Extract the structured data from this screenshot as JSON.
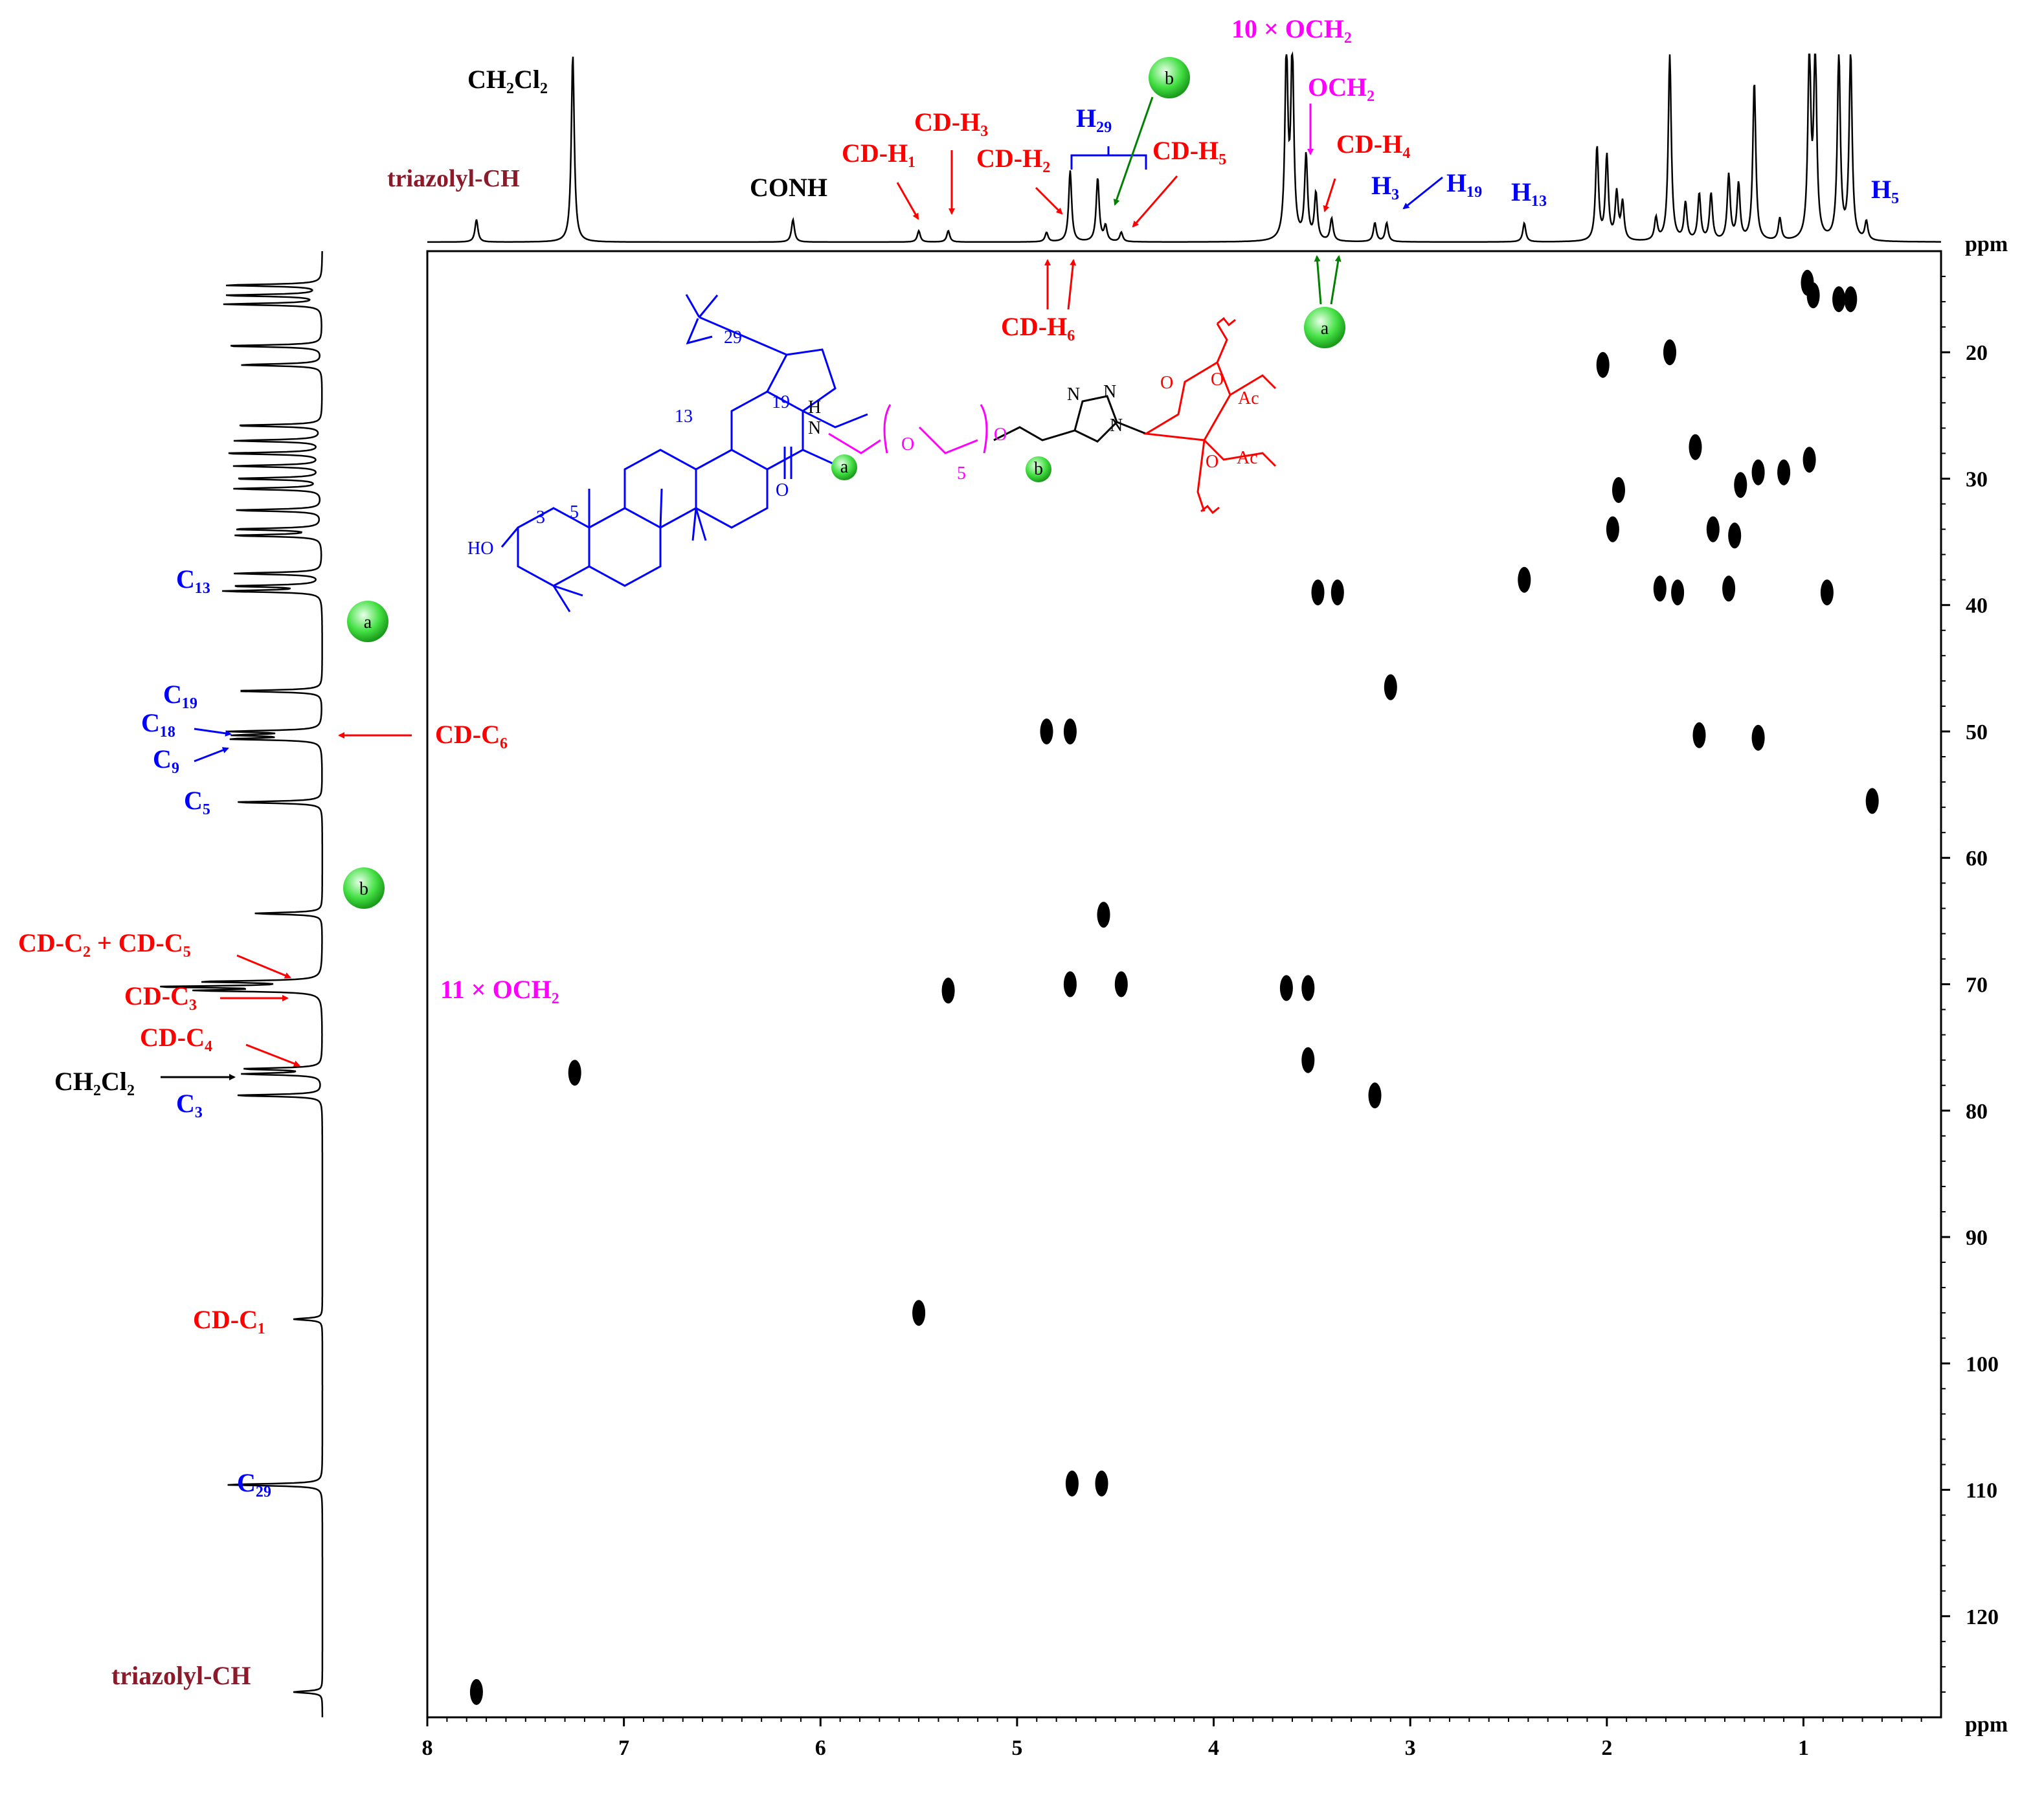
{
  "chart_data": {
    "type": "scatter",
    "subtype": "2D NMR HSQC contour plot",
    "xlabel": "ppm",
    "ylabel": "ppm",
    "x_ticks": [
      "8",
      "7",
      "6",
      "5",
      "4",
      "3",
      "2",
      "1"
    ],
    "y_ticks": [
      "20",
      "30",
      "40",
      "50",
      "60",
      "70",
      "80",
      "90",
      "100",
      "110",
      "120"
    ],
    "xlim": [
      8.0,
      0.3
    ],
    "ylim": [
      12,
      128
    ],
    "cross_peaks": [
      {
        "h": 7.75,
        "c": 126.0
      },
      {
        "h": 7.25,
        "c": 77.0
      },
      {
        "h": 5.5,
        "c": 96.0
      },
      {
        "h": 5.35,
        "c": 70.5
      },
      {
        "h": 4.85,
        "c": 50.0
      },
      {
        "h": 4.73,
        "c": 50.0
      },
      {
        "h": 4.73,
        "c": 70.0
      },
      {
        "h": 4.47,
        "c": 70.0
      },
      {
        "h": 4.56,
        "c": 64.5
      },
      {
        "h": 4.72,
        "c": 109.5
      },
      {
        "h": 4.57,
        "c": 109.5
      },
      {
        "h": 3.63,
        "c": 70.3
      },
      {
        "h": 3.52,
        "c": 70.3
      },
      {
        "h": 3.47,
        "c": 39.0
      },
      {
        "h": 3.37,
        "c": 39.0
      },
      {
        "h": 3.52,
        "c": 76.0
      },
      {
        "h": 3.18,
        "c": 78.8
      },
      {
        "h": 3.1,
        "c": 46.5
      },
      {
        "h": 2.42,
        "c": 38.0
      },
      {
        "h": 2.02,
        "c": 21.0
      },
      {
        "h": 1.68,
        "c": 20.0
      },
      {
        "h": 1.94,
        "c": 30.9
      },
      {
        "h": 1.97,
        "c": 34.0
      },
      {
        "h": 1.55,
        "c": 27.5
      },
      {
        "h": 1.53,
        "c": 50.3
      },
      {
        "h": 1.32,
        "c": 30.5
      },
      {
        "h": 1.23,
        "c": 29.5
      },
      {
        "h": 1.1,
        "c": 29.5
      },
      {
        "h": 0.97,
        "c": 28.5
      },
      {
        "h": 1.46,
        "c": 34.0
      },
      {
        "h": 1.35,
        "c": 34.5
      },
      {
        "h": 1.73,
        "c": 38.7
      },
      {
        "h": 1.64,
        "c": 39.0
      },
      {
        "h": 1.38,
        "c": 38.7
      },
      {
        "h": 0.88,
        "c": 39.0
      },
      {
        "h": 1.23,
        "c": 50.5
      },
      {
        "h": 0.65,
        "c": 55.5
      },
      {
        "h": 0.98,
        "c": 14.5
      },
      {
        "h": 0.95,
        "c": 15.5
      },
      {
        "h": 0.82,
        "c": 15.8
      },
      {
        "h": 0.76,
        "c": 15.8
      }
    ],
    "h1_peaks": [
      {
        "ppm": 7.75,
        "h": 0.12
      },
      {
        "ppm": 7.26,
        "h": 1.0
      },
      {
        "ppm": 6.14,
        "h": 0.12
      },
      {
        "ppm": 5.5,
        "h": 0.06
      },
      {
        "ppm": 5.35,
        "h": 0.06
      },
      {
        "ppm": 4.85,
        "h": 0.05
      },
      {
        "ppm": 4.73,
        "h": 0.38
      },
      {
        "ppm": 4.59,
        "h": 0.34
      },
      {
        "ppm": 4.55,
        "h": 0.08
      },
      {
        "ppm": 4.47,
        "h": 0.05
      },
      {
        "ppm": 3.63,
        "h": 1.0
      },
      {
        "ppm": 3.6,
        "h": 1.0
      },
      {
        "ppm": 3.53,
        "h": 0.45
      },
      {
        "ppm": 3.48,
        "h": 0.25
      },
      {
        "ppm": 3.4,
        "h": 0.12
      },
      {
        "ppm": 3.18,
        "h": 0.1
      },
      {
        "ppm": 3.12,
        "h": 0.1
      },
      {
        "ppm": 2.42,
        "h": 0.1
      },
      {
        "ppm": 2.05,
        "h": 0.5
      },
      {
        "ppm": 2.0,
        "h": 0.45
      },
      {
        "ppm": 1.95,
        "h": 0.25
      },
      {
        "ppm": 1.92,
        "h": 0.2
      },
      {
        "ppm": 1.75,
        "h": 0.12
      },
      {
        "ppm": 1.68,
        "h": 1.0
      },
      {
        "ppm": 1.6,
        "h": 0.2
      },
      {
        "ppm": 1.53,
        "h": 0.25
      },
      {
        "ppm": 1.47,
        "h": 0.25
      },
      {
        "ppm": 1.38,
        "h": 0.35
      },
      {
        "ppm": 1.33,
        "h": 0.3
      },
      {
        "ppm": 1.25,
        "h": 0.85
      },
      {
        "ppm": 1.12,
        "h": 0.12
      },
      {
        "ppm": 0.97,
        "h": 1.0
      },
      {
        "ppm": 0.94,
        "h": 1.0
      },
      {
        "ppm": 0.82,
        "h": 1.0
      },
      {
        "ppm": 0.76,
        "h": 1.0
      },
      {
        "ppm": 0.68,
        "h": 0.1
      }
    ],
    "c13_peaks": [
      {
        "ppm": 14.7,
        "h": 1.0
      },
      {
        "ppm": 15.5,
        "h": 1.0
      },
      {
        "ppm": 16.2,
        "h": 1.0
      },
      {
        "ppm": 19.5,
        "h": 1.0
      },
      {
        "ppm": 21.0,
        "h": 0.85
      },
      {
        "ppm": 25.8,
        "h": 0.9
      },
      {
        "ppm": 27.0,
        "h": 0.9
      },
      {
        "ppm": 28.0,
        "h": 1.0
      },
      {
        "ppm": 29.0,
        "h": 0.9
      },
      {
        "ppm": 30.0,
        "h": 0.9
      },
      {
        "ppm": 30.8,
        "h": 0.9
      },
      {
        "ppm": 32.5,
        "h": 0.9
      },
      {
        "ppm": 34.0,
        "h": 0.9
      },
      {
        "ppm": 34.5,
        "h": 0.9
      },
      {
        "ppm": 37.5,
        "h": 0.9
      },
      {
        "ppm": 38.5,
        "h": 0.9
      },
      {
        "ppm": 38.9,
        "h": 1.0
      },
      {
        "ppm": 46.8,
        "h": 0.9
      },
      {
        "ppm": 50.0,
        "h": 0.9
      },
      {
        "ppm": 50.3,
        "h": 0.8
      },
      {
        "ppm": 50.6,
        "h": 0.9
      },
      {
        "ppm": 55.6,
        "h": 0.9
      },
      {
        "ppm": 64.4,
        "h": 0.7
      },
      {
        "ppm": 69.8,
        "h": 1.2
      },
      {
        "ppm": 70.2,
        "h": 1.6
      },
      {
        "ppm": 70.5,
        "h": 1.2
      },
      {
        "ppm": 76.7,
        "h": 0.8
      },
      {
        "ppm": 77.1,
        "h": 0.8
      },
      {
        "ppm": 78.8,
        "h": 0.9
      },
      {
        "ppm": 96.5,
        "h": 0.3
      },
      {
        "ppm": 109.6,
        "h": 1.0
      },
      {
        "ppm": 126.0,
        "h": 0.3
      }
    ],
    "colors": {
      "red": "#ff0000",
      "blue": "#0000ff",
      "magenta": "#ff00ff",
      "green": "#008000",
      "darkred": "#8b1a2b",
      "black": "#000000"
    }
  },
  "top_labels": {
    "ch2cl2": "CH₂Cl₂",
    "triazolyl": "triazolyl-CH",
    "conh": "CONH",
    "cd_h1": "CD-H₁",
    "cd_h3": "CD-H₃",
    "cd_h2": "CD-H₂",
    "h29": "H₂₉",
    "cd_h5": "CD-H₅",
    "och2_10": "10 × OCH₂",
    "och2": "OCH₂",
    "cd_h4": "CD-H₄",
    "h3": "H₃",
    "h19": "H₁₉",
    "h13": "H₁₃",
    "h5": "H₅",
    "cd_h6": "CD-H₆",
    "marker_a": "a",
    "marker_b": "b"
  },
  "left_labels": {
    "c13": "C₁₃",
    "c19": "C₁₉",
    "c18": "C₁₈",
    "c9": "C₉",
    "cd_c6": "CD-C₆",
    "c5": "C₅",
    "cd_c2_c5": "CD-C₂ + CD-C₅",
    "cd_c3": "CD-C₃",
    "och2_11": "11 × OCH₂",
    "cd_c4": "CD-C₄",
    "ch2cl2": "CH₂Cl₂",
    "c3": "C₃",
    "cd_c1": "CD-C₁",
    "c29": "C₂₉",
    "triazolyl": "triazolyl-CH",
    "marker_a": "a",
    "marker_b": "b"
  },
  "structure": {
    "ho": "HO",
    "n3": "3",
    "n5": "5",
    "n13": "13",
    "n19": "19",
    "n29": "29",
    "nh": "N",
    "h": "H",
    "o_carbonyl": "O",
    "o_peg1": "O",
    "o_peg2": "O",
    "rep5": "5",
    "mark_a": "a",
    "mark_b": "b",
    "n_tri1": "N",
    "n_tri2": "N",
    "n_tri3": "N",
    "o_ring": "O",
    "o_ac1": "O",
    "o_ac2": "O",
    "ac1": "Ac",
    "ac2": "Ac"
  }
}
